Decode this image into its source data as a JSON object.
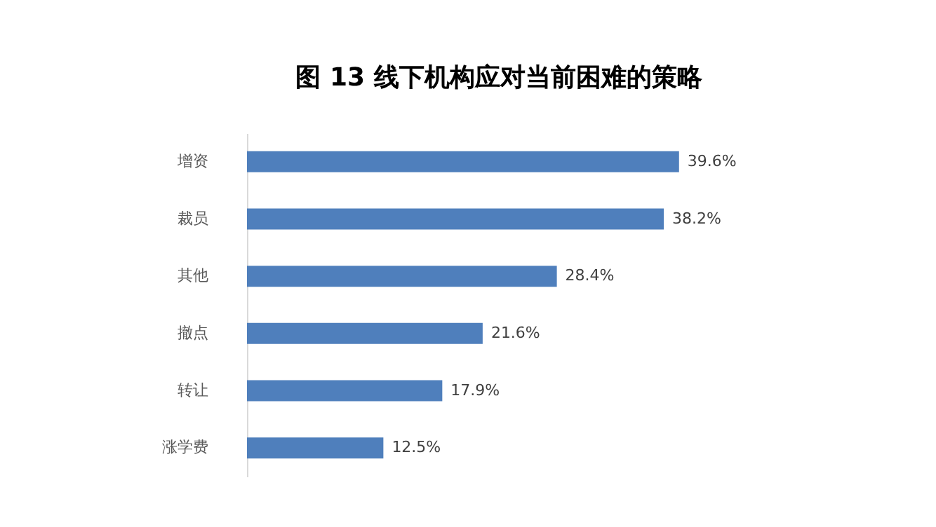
{
  "chart_data": {
    "type": "bar",
    "orientation": "horizontal",
    "title": "图 13  线下机构应对当前困难的策略",
    "categories": [
      "增资",
      "裁员",
      "其他",
      "撤点",
      "转让",
      "涨学费"
    ],
    "values": [
      39.6,
      38.2,
      28.4,
      21.6,
      17.9,
      12.5
    ],
    "value_labels": [
      "39.6%",
      "38.2%",
      "28.4%",
      "21.6%",
      "17.9%",
      "12.5%"
    ],
    "color": "#4f7fbc",
    "grid": false
  }
}
